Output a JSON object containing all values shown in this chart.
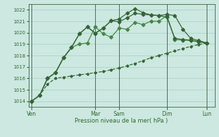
{
  "bg_color": "#cce8e0",
  "grid_color": "#99ccbb",
  "line_color1": "#336633",
  "line_color2": "#448844",
  "line_color3": "#336633",
  "line_color4": "#336633",
  "ylim": [
    1013.5,
    1022.5
  ],
  "yticks": [
    1014,
    1015,
    1016,
    1017,
    1018,
    1019,
    1020,
    1021,
    1022
  ],
  "xlabel": "Pression niveau de la mer( hPa )",
  "xlabel_color": "#336633",
  "tick_color": "#336633",
  "day_labels": [
    "Ven",
    "Mar",
    "Sam",
    "Dim",
    "Lun"
  ],
  "day_x": [
    0,
    4,
    5.5,
    8.5,
    11
  ],
  "xlim": [
    -0.2,
    11.5
  ],
  "series1_x": [
    0,
    0.5,
    1.0,
    1.5,
    2.0,
    2.5,
    3.0,
    3.5,
    4.0,
    4.5,
    5.0,
    5.5,
    6.0,
    6.5,
    7.0,
    7.5,
    8.0,
    8.5,
    9.0,
    9.5,
    10.0,
    10.5,
    11.0
  ],
  "series1_y": [
    1014.0,
    1014.5,
    1015.5,
    1016.0,
    1016.1,
    1016.2,
    1016.3,
    1016.4,
    1016.5,
    1016.6,
    1016.75,
    1016.9,
    1017.1,
    1017.3,
    1017.55,
    1017.8,
    1018.0,
    1018.2,
    1018.4,
    1018.6,
    1018.8,
    1018.95,
    1019.1
  ],
  "series2_x": [
    0,
    0.5,
    1.0,
    1.5,
    2.0,
    2.5,
    3.0,
    3.5,
    4.0,
    4.5,
    5.0,
    5.5,
    6.0,
    6.5,
    7.0,
    7.5,
    8.0,
    8.5,
    9.0,
    9.5,
    10.0,
    10.5,
    11.0
  ],
  "series2_y": [
    1014.0,
    1014.5,
    1016.0,
    1016.5,
    1017.8,
    1018.7,
    1019.0,
    1019.1,
    1020.5,
    1019.9,
    1019.6,
    1020.4,
    1020.3,
    1020.9,
    1020.7,
    1021.0,
    1021.0,
    1021.5,
    1019.4,
    1019.35,
    1019.3,
    1019.2,
    1019.1
  ],
  "series3_x": [
    0,
    0.5,
    1.0,
    1.5,
    2.0,
    2.5,
    3.0,
    3.5,
    4.0,
    4.5,
    5.0,
    5.5,
    6.0,
    6.5,
    7.0,
    7.5,
    8.0,
    8.5,
    9.0,
    9.5,
    10.0,
    10.5,
    11.0
  ],
  "series3_y": [
    1014.0,
    1014.5,
    1016.0,
    1016.5,
    1017.8,
    1018.7,
    1019.9,
    1020.5,
    1019.95,
    1020.4,
    1021.05,
    1020.95,
    1021.3,
    1021.7,
    1021.6,
    1021.55,
    1021.5,
    1021.6,
    1021.5,
    1020.3,
    1019.5,
    1019.3,
    1019.1
  ],
  "series4_x": [
    0,
    0.5,
    1.0,
    1.5,
    2.0,
    2.5,
    3.0,
    3.5,
    4.0,
    4.5,
    5.0,
    5.5,
    6.0,
    6.5,
    7.0,
    7.5,
    8.0,
    8.5,
    9.0,
    9.5,
    10.0,
    10.5,
    11.0
  ],
  "series4_y": [
    1014.0,
    1014.5,
    1016.0,
    1016.5,
    1017.8,
    1018.7,
    1019.9,
    1020.5,
    1019.95,
    1020.4,
    1021.05,
    1021.2,
    1021.7,
    1022.1,
    1021.75,
    1021.55,
    1021.5,
    1021.35,
    1019.5,
    1019.4,
    1019.35,
    1019.2,
    1019.1
  ]
}
